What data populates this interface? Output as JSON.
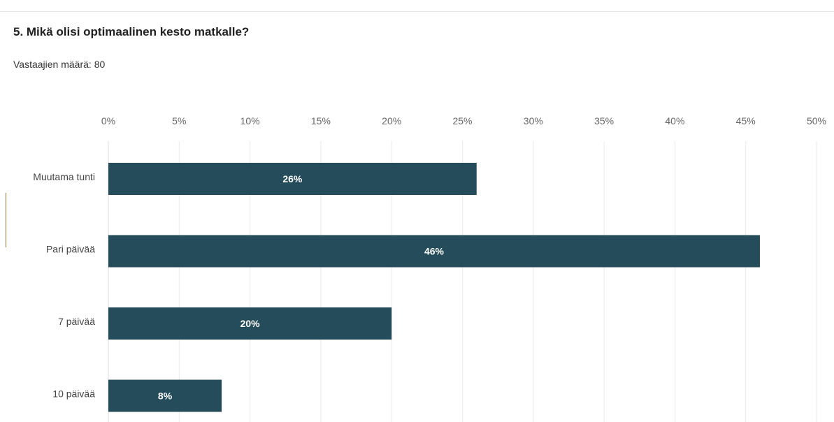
{
  "question": {
    "title": "5. Mikä olisi optimaalinen kesto matkalle?",
    "respondents_label": "Vastaajien määrä:",
    "respondents_count": "80"
  },
  "colors": {
    "bar": "#244c5a",
    "gridline": "#e9e9ee",
    "axis": "#dcdce6"
  },
  "chart_data": {
    "type": "bar",
    "orientation": "horizontal",
    "categories": [
      "Muutama tunti",
      "Pari päivää",
      "7 päivää",
      "10 päivää"
    ],
    "values": [
      26,
      46,
      20,
      8
    ],
    "data_labels": [
      "26%",
      "46%",
      "20%",
      "8%"
    ],
    "xlim": [
      0,
      50
    ],
    "x_ticks": [
      0,
      5,
      10,
      15,
      20,
      25,
      30,
      35,
      40,
      45,
      50
    ],
    "x_tick_labels": [
      "0%",
      "5%",
      "10%",
      "15%",
      "20%",
      "25%",
      "30%",
      "35%",
      "40%",
      "45%",
      "50%"
    ],
    "x_axis_position": "top",
    "grid": true,
    "legend": "none"
  }
}
